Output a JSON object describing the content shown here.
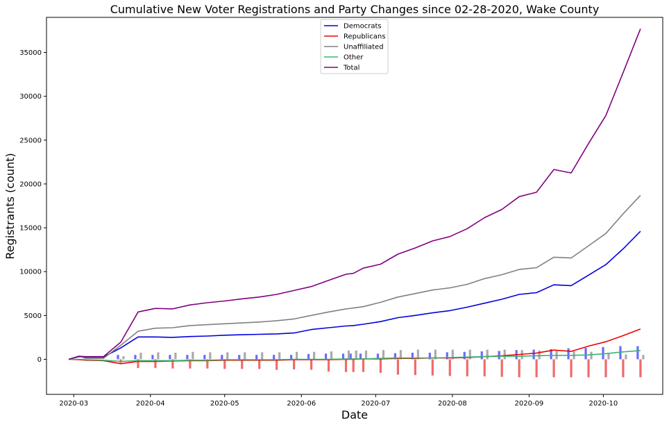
{
  "chart_data": {
    "type": "line",
    "title": "Cumulative New Voter Registrations and Party Changes since 02-28-2020, Wake County",
    "xlabel": "Date",
    "ylabel": "Registrants (count)",
    "xlim": [
      "2020-02-19",
      "2020-10-25"
    ],
    "ylim": [
      -4000,
      39000
    ],
    "x_ticks": [
      "2020-03",
      "2020-04",
      "2020-05",
      "2020-06",
      "2020-07",
      "2020-08",
      "2020-09",
      "2020-10"
    ],
    "y_ticks": [
      0,
      5000,
      10000,
      15000,
      20000,
      25000,
      30000,
      35000
    ],
    "legend_position": "top-center",
    "grid": false,
    "x": [
      "2020-02-28",
      "2020-03-03",
      "2020-03-06",
      "2020-03-13",
      "2020-03-20",
      "2020-03-27",
      "2020-04-03",
      "2020-04-10",
      "2020-04-17",
      "2020-04-24",
      "2020-05-01",
      "2020-05-08",
      "2020-05-15",
      "2020-05-22",
      "2020-05-29",
      "2020-06-05",
      "2020-06-12",
      "2020-06-19",
      "2020-06-22",
      "2020-06-26",
      "2020-07-03",
      "2020-07-10",
      "2020-07-17",
      "2020-07-24",
      "2020-07-31",
      "2020-08-07",
      "2020-08-14",
      "2020-08-21",
      "2020-08-28",
      "2020-09-04",
      "2020-09-11",
      "2020-09-18",
      "2020-09-25",
      "2020-10-02",
      "2020-10-09",
      "2020-10-16"
    ],
    "series": [
      {
        "name": "Democrats",
        "color": "#0000dd",
        "values": [
          0,
          300,
          250,
          250,
          1300,
          2550,
          2550,
          2500,
          2600,
          2650,
          2750,
          2800,
          2850,
          2900,
          3000,
          3400,
          3600,
          3800,
          3850,
          4000,
          4300,
          4750,
          5000,
          5300,
          5550,
          5950,
          6400,
          6850,
          7400,
          7600,
          8500,
          8400,
          9600,
          10800,
          12600,
          14600
        ]
      },
      {
        "name": "Republicans",
        "color": "#ee0000",
        "values": [
          0,
          -50,
          -100,
          -150,
          -500,
          -250,
          -250,
          -200,
          -150,
          -150,
          -100,
          -100,
          -100,
          -100,
          -50,
          -50,
          -50,
          0,
          0,
          50,
          50,
          100,
          100,
          150,
          150,
          200,
          300,
          400,
          550,
          700,
          1050,
          900,
          1500,
          2000,
          2700,
          3450
        ]
      },
      {
        "name": "Unaffiliated",
        "color": "#808080",
        "values": [
          0,
          350,
          100,
          100,
          1600,
          3200,
          3550,
          3600,
          3850,
          3950,
          4050,
          4150,
          4250,
          4400,
          4600,
          5000,
          5400,
          5750,
          5850,
          6000,
          6500,
          7100,
          7500,
          7900,
          8150,
          8550,
          9200,
          9650,
          10250,
          10450,
          11650,
          11550,
          12950,
          14350,
          16600,
          18700
        ]
      },
      {
        "name": "Other",
        "color": "#3cb371",
        "values": [
          0,
          0,
          -50,
          -100,
          -250,
          -150,
          -150,
          -150,
          -100,
          -100,
          -50,
          -50,
          -50,
          -50,
          0,
          0,
          0,
          50,
          50,
          50,
          100,
          150,
          150,
          150,
          200,
          250,
          300,
          350,
          350,
          400,
          450,
          450,
          500,
          650,
          850,
          1000
        ]
      },
      {
        "name": "Total",
        "color": "#800080",
        "values": [
          0,
          350,
          300,
          300,
          1950,
          5400,
          5800,
          5750,
          6200,
          6450,
          6650,
          6900,
          7100,
          7400,
          7850,
          8300,
          9000,
          9700,
          9800,
          10400,
          10850,
          12000,
          12700,
          13500,
          14000,
          14900,
          16150,
          17100,
          18550,
          19050,
          21650,
          21250,
          24600,
          27800,
          32700,
          37700
        ]
      }
    ],
    "weekly_bars": {
      "x": [
        "2020-03-20",
        "2020-03-27",
        "2020-04-03",
        "2020-04-10",
        "2020-04-17",
        "2020-04-24",
        "2020-05-01",
        "2020-05-08",
        "2020-05-15",
        "2020-05-22",
        "2020-05-29",
        "2020-06-05",
        "2020-06-12",
        "2020-06-19",
        "2020-06-22",
        "2020-06-26",
        "2020-07-03",
        "2020-07-10",
        "2020-07-17",
        "2020-07-24",
        "2020-07-31",
        "2020-08-07",
        "2020-08-14",
        "2020-08-21",
        "2020-08-28",
        "2020-09-04",
        "2020-09-11",
        "2020-09-18",
        "2020-09-25",
        "2020-10-02",
        "2020-10-09",
        "2020-10-16"
      ],
      "series": [
        {
          "color": "#6a6aff",
          "values": [
            500,
            500,
            500,
            500,
            500,
            500,
            500,
            500,
            500,
            500,
            500,
            600,
            650,
            650,
            650,
            650,
            650,
            700,
            750,
            750,
            800,
            850,
            900,
            950,
            1050,
            1100,
            1150,
            1250,
            1300,
            1400,
            1500,
            1500
          ]
        },
        {
          "color": "#f06a6a",
          "values": [
            -400,
            -1000,
            -1000,
            -1050,
            -1050,
            -1050,
            -1100,
            -1100,
            -1100,
            -1200,
            -1150,
            -1200,
            -1400,
            -1450,
            -1450,
            -1450,
            -1550,
            -1750,
            -1800,
            -1850,
            -1900,
            -1950,
            -1950,
            -2000,
            -2050,
            -2050,
            -2050,
            -2050,
            -2050,
            -2050,
            -2050,
            -2050
          ]
        },
        {
          "color": "#aaaaaa",
          "values": [
            350,
            750,
            800,
            750,
            850,
            800,
            800,
            800,
            800,
            800,
            850,
            850,
            900,
            1000,
            1000,
            1000,
            1050,
            1050,
            1100,
            1100,
            1100,
            1100,
            1100,
            1100,
            1050,
            1000,
            950,
            900,
            850,
            700,
            550,
            500
          ]
        }
      ]
    }
  }
}
